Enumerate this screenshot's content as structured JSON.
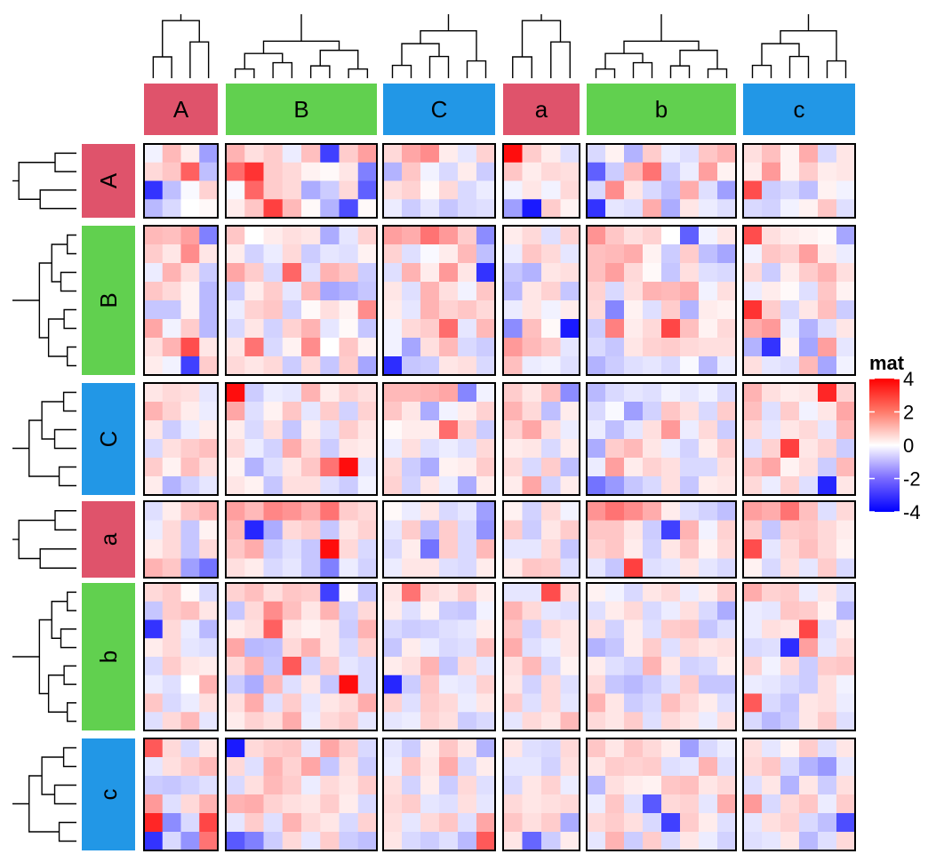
{
  "chart_data": {
    "type": "heatmap",
    "legend": {
      "title": "mat",
      "ticks": [
        "4",
        "2",
        "0",
        "-2",
        "-4"
      ],
      "range": [
        -4,
        4
      ],
      "colors": {
        "low": "#0000ff",
        "mid": "#ffffff",
        "high": "#ff0000"
      }
    },
    "column_groups": [
      {
        "label": "A",
        "color": "#df536b",
        "n": 4
      },
      {
        "label": "B",
        "color": "#61d04f",
        "n": 8
      },
      {
        "label": "C",
        "color": "#2297e6",
        "n": 6
      },
      {
        "label": "a",
        "color": "#df536b",
        "n": 4
      },
      {
        "label": "b",
        "color": "#61d04f",
        "n": 8
      },
      {
        "label": "c",
        "color": "#2297e6",
        "n": 6
      }
    ],
    "row_groups": [
      {
        "label": "A",
        "color": "#df536b",
        "n": 4
      },
      {
        "label": "B",
        "color": "#61d04f",
        "n": 8
      },
      {
        "label": "C",
        "color": "#2297e6",
        "n": 6
      },
      {
        "label": "a",
        "color": "#df536b",
        "n": 4
      },
      {
        "label": "b",
        "color": "#61d04f",
        "n": 8
      },
      {
        "label": "c",
        "color": "#2297e6",
        "n": 6
      }
    ],
    "values": [
      [
        -0.2,
        1.1,
        0.3,
        -1.5,
        1.2,
        0.5,
        0.8,
        -0.3,
        1.0,
        -3.0,
        0.8,
        1.5,
        0.6,
        1.4,
        1.8,
        0.3,
        -0.4,
        0.7,
        3.8,
        0.8,
        0.3,
        -0.5,
        -0.6,
        0.2,
        -1.2,
        0.8,
        -0.3,
        -0.5,
        0.9,
        1.2,
        0.5,
        1.0,
        0.2,
        1.3,
        -0.6,
        0.4
      ],
      [
        0.6,
        0.9,
        2.5,
        -1.0,
        2.3,
        3.2,
        0.8,
        0.6,
        0.2,
        0.1,
        0.4,
        -2.0,
        -1.2,
        0.9,
        -0.2,
        -0.6,
        0.3,
        -0.8,
        0.9,
        0.3,
        0.6,
        0.5,
        -2.5,
        -0.8,
        1.1,
        2.2,
        -0.8,
        -0.3,
        1.5,
        0.2,
        0.3,
        1.6,
        0.2,
        0.8,
        0.3,
        0.4
      ],
      [
        -3.2,
        -1.0,
        -0.1,
        0.7,
        -0.1,
        2.4,
        0.8,
        0.6,
        -1.3,
        -0.8,
        0.6,
        -2.5,
        0.5,
        0.7,
        0.1,
        0.6,
        -0.6,
        -0.3,
        -0.2,
        0.4,
        -0.2,
        0.6,
        -0.6,
        1.8,
        0.4,
        -0.6,
        -1.0,
        1.3,
        -0.5,
        -1.5,
        2.8,
        -0.8,
        -0.6,
        -1.0,
        0.2,
        -0.2
      ],
      [
        -1.1,
        -0.6,
        0.0,
        0.1,
        0.3,
        0.9,
        3.0,
        1.1,
        0.1,
        -1.2,
        -2.8,
        0.1,
        -0.3,
        -0.8,
        -0.4,
        -0.9,
        -0.6,
        -0.5,
        -1.5,
        -3.6,
        0.8,
        0.2,
        -3.2,
        -0.4,
        -0.5,
        1.3,
        -1.3,
        0.4,
        -0.3,
        -0.5,
        -0.6,
        -0.7,
        -0.2,
        0.2,
        0.9,
        -0.5
      ],
      [
        1.1,
        1.0,
        1.5,
        -2.0,
        0.9,
        0.0,
        0.3,
        0.5,
        0.4,
        -1.3,
        -0.4,
        0.7,
        1.5,
        1.3,
        2.2,
        1.6,
        0.8,
        -1.8,
        0.3,
        0.6,
        -0.5,
        0.7,
        1.7,
        0.9,
        0.5,
        0.7,
        0.0,
        -2.5,
        -0.2,
        0.4,
        2.8,
        0.5,
        0.3,
        0.2,
        0.1,
        -1.4
      ],
      [
        0.8,
        0.4,
        1.8,
        0.4,
        0.3,
        -0.7,
        -0.3,
        0.6,
        -0.8,
        -0.4,
        -0.5,
        0.2,
        0.7,
        -0.5,
        -0.1,
        0.3,
        1.1,
        -1.0,
        -0.3,
        0.9,
        0.6,
        -0.4,
        1.0,
        1.1,
        1.3,
        0.2,
        -0.8,
        0.8,
        -1.0,
        -1.4,
        -0.2,
        0.9,
        0.7,
        1.5,
        0.3,
        -0.3
      ],
      [
        -0.3,
        1.2,
        0.5,
        -0.8,
        1.4,
        0.8,
        -0.6,
        2.4,
        -0.5,
        1.2,
        0.9,
        -0.8,
        -0.5,
        1.2,
        0.3,
        1.6,
        0.4,
        -3.2,
        -0.9,
        -1.2,
        0.4,
        0.5,
        1.0,
        1.5,
        0.6,
        0.1,
        -0.9,
        0.5,
        -0.5,
        -0.6,
        0.6,
        -0.8,
        0.3,
        0.8,
        1.2,
        0.5
      ],
      [
        0.9,
        0.6,
        0.2,
        -1.1,
        -0.8,
        0.3,
        0.8,
        -0.4,
        1.1,
        -1.4,
        -1.2,
        -0.9,
        0.4,
        -0.5,
        1.2,
        0.5,
        -0.2,
        0.9,
        -1.1,
        0.4,
        0.7,
        -0.9,
        0.7,
        -0.6,
        0.5,
        1.2,
        1.1,
        1.3,
        -0.2,
        0.5,
        -0.3,
        0.3,
        0.1,
        -0.5,
        0.9,
        0.2
      ],
      [
        -0.9,
        -0.9,
        0.2,
        -1.1,
        -0.3,
        0.7,
        0.9,
        -0.7,
        0.1,
        0.5,
        0.2,
        1.8,
        0.3,
        -0.4,
        1.2,
        0.7,
        0.9,
        0.6,
        -0.3,
        0.4,
        -0.2,
        0.3,
        0.6,
        -1.9,
        0.2,
        -0.5,
        0.8,
        -1.2,
        0.3,
        0.2,
        3.2,
        0.8,
        -0.6,
        0.4,
        1.0,
        -0.8
      ],
      [
        1.4,
        -0.2,
        0.8,
        -1.1,
        -0.6,
        0.4,
        -0.7,
        0.7,
        1.2,
        -0.4,
        0.1,
        -0.9,
        -0.2,
        0.6,
        0.8,
        2.3,
        -0.4,
        1.1,
        -1.8,
        1.0,
        0.1,
        -3.6,
        -0.8,
        2.0,
        0.3,
        0.6,
        2.9,
        1.0,
        0.2,
        0.6,
        1.3,
        1.6,
        -0.3,
        -1.2,
        -0.5,
        0.4
      ],
      [
        0.5,
        1.2,
        2.8,
        0.4,
        0.4,
        2.2,
        -0.6,
        0.2,
        1.8,
        0.0,
        0.9,
        0.2,
        -0.2,
        -1.4,
        0.5,
        1.1,
        -0.6,
        -0.8,
        1.6,
        1.1,
        0.8,
        -0.4,
        -0.6,
        -0.9,
        0.4,
        0.7,
        0.8,
        0.6,
        0.5,
        0.5,
        -1.2,
        -3.2,
        0.2,
        -1.4,
        1.5,
        -0.4
      ],
      [
        0.3,
        -0.2,
        -3.0,
        0.8,
        0.6,
        0.4,
        0.6,
        -0.8,
        0.6,
        -0.9,
        0.8,
        -1.4,
        -3.3,
        -0.9,
        -0.8,
        0.4,
        0.5,
        -0.6,
        1.0,
        -0.3,
        -0.2,
        -0.5,
        -1.2,
        -0.8,
        -0.5,
        -0.4,
        -0.6,
        -0.1,
        -1.1,
        -0.3,
        0.5,
        -0.4,
        -0.5,
        1.1,
        -1.4,
        -0.2
      ],
      [
        0.4,
        0.6,
        0.5,
        -0.4,
        3.8,
        -0.8,
        -0.3,
        -0.4,
        1.2,
        0.3,
        0.7,
        0.5,
        1.1,
        1.1,
        1.2,
        1.4,
        -1.9,
        -0.2,
        0.8,
        0.4,
        1.0,
        -1.8,
        -1.1,
        -0.6,
        -0.4,
        -0.5,
        -0.2,
        -0.4,
        -0.2,
        -0.6,
        1.2,
        0.5,
        0.3,
        0.4,
        3.4,
        0.7
      ],
      [
        1.2,
        0.7,
        0.3,
        -0.3,
        1.4,
        -0.5,
        0.2,
        0.9,
        -0.4,
        0.8,
        -0.7,
        0.7,
        0.9,
        0.4,
        -1.3,
        -0.2,
        0.3,
        0.7,
        1.2,
        0.6,
        -1.0,
        0.3,
        -0.6,
        -0.1,
        -1.5,
        -0.7,
        0.9,
        0.5,
        -0.6,
        0.8,
        1.0,
        -0.5,
        0.8,
        -0.2,
        0.4,
        1.4
      ],
      [
        0.4,
        -0.8,
        -0.3,
        0.3,
        0.3,
        -0.6,
        0.5,
        -0.9,
        0.3,
        -0.5,
        0.8,
        0.4,
        0.1,
        0.3,
        0.3,
        2.3,
        0.7,
        -0.8,
        0.7,
        1.4,
        0.5,
        -0.3,
        -0.3,
        -1.0,
        -0.4,
        0.5,
        1.6,
        -0.3,
        0.6,
        -0.8,
        0.6,
        -0.4,
        0.4,
        0.6,
        -0.4,
        1.1
      ],
      [
        -0.6,
        0.5,
        0.8,
        1.0,
        0.6,
        -0.3,
        -0.7,
        1.3,
        0.6,
        -0.8,
        0.4,
        0.3,
        -0.3,
        0.5,
        -0.5,
        -0.3,
        -0.5,
        0.6,
        0.3,
        0.4,
        -0.6,
        0.3,
        -1.3,
        0.8,
        1.1,
        0.4,
        -0.3,
        -0.7,
        0.3,
        0.8,
        -0.5,
        0.7,
        3.0,
        0.4,
        0.7,
        -0.8
      ],
      [
        0.8,
        0.2,
        1.0,
        0.5,
        0.2,
        -1.2,
        -0.5,
        0.4,
        0.9,
        2.2,
        3.8,
        -0.4,
        0.6,
        -0.8,
        -1.3,
        0.2,
        0.3,
        0.8,
        0.6,
        -0.6,
        0.8,
        -1.0,
        -0.3,
        1.5,
        0.3,
        0.7,
        0.5,
        -0.6,
        -0.6,
        0.5,
        1.0,
        1.4,
        0.2,
        0.5,
        -0.8,
        1.1
      ],
      [
        0.3,
        -1.2,
        -0.7,
        -0.4,
        0.4,
        0.2,
        -0.9,
        0.5,
        0.5,
        -0.5,
        -0.8,
        -0.2,
        0.7,
        -0.7,
        0.4,
        -0.3,
        -1.3,
        0.3,
        0.3,
        1.4,
        -0.7,
        0.3,
        -2.2,
        -1.6,
        -0.9,
        -0.6,
        0.5,
        -0.9,
        0.3,
        0.4,
        0.6,
        -0.3,
        0.7,
        -0.5,
        -3.4,
        0.4
      ],
      [
        -0.5,
        0.3,
        0.9,
        1.2,
        1.5,
        1.1,
        1.9,
        1.7,
        1.3,
        2.2,
        0.8,
        0.6,
        0.1,
        -0.3,
        0.4,
        -0.6,
        -0.4,
        -1.5,
        0.2,
        -0.7,
        0.6,
        -0.2,
        1.7,
        2.2,
        1.8,
        1.3,
        0.3,
        -0.5,
        -0.7,
        -1.0,
        1.5,
        1.3,
        2.2,
        1.0,
        -0.5,
        0.6
      ],
      [
        -0.3,
        0.6,
        -0.9,
        0.2,
        1.1,
        -3.4,
        -1.3,
        0.6,
        0.8,
        -0.9,
        0.4,
        0.7,
        -0.4,
        0.8,
        -1.1,
        0.8,
        -0.6,
        -1.7,
        0.8,
        -0.8,
        0.4,
        0.8,
        0.9,
        0.9,
        0.4,
        -0.8,
        -3.0,
        1.2,
        -0.2,
        0.7,
        0.8,
        -0.9,
        0.8,
        0.9,
        0.6,
        0.3
      ],
      [
        0.3,
        0.6,
        -0.9,
        0.6,
        0.9,
        1.3,
        -0.8,
        -0.5,
        -0.9,
        3.8,
        0.6,
        -0.6,
        -0.6,
        0.3,
        -2.2,
        0.8,
        -0.6,
        1.1,
        -0.4,
        -0.4,
        0.6,
        -0.9,
        0.7,
        0.9,
        0.3,
        -0.7,
        0.4,
        0.9,
        0.2,
        0.6,
        2.8,
        -0.4,
        0.6,
        1.0,
        0.6,
        0.2
      ],
      [
        1.2,
        0.9,
        -1.5,
        -2.2,
        0.5,
        0.3,
        -0.6,
        -0.4,
        -0.9,
        -2.0,
        -0.3,
        -0.7,
        -0.3,
        0.4,
        0.4,
        -0.5,
        -0.6,
        0.3,
        0.3,
        0.9,
        0.8,
        -0.5,
        -0.4,
        -0.9,
        3.0,
        -0.5,
        -0.4,
        0.4,
        -0.4,
        -0.6,
        0.2,
        -0.6,
        0.5,
        -0.4,
        0.8,
        -0.6
      ],
      [
        0.6,
        0.8,
        0.1,
        -0.6,
        0.7,
        1.0,
        0.5,
        0.9,
        0.8,
        -3.0,
        0.1,
        -0.9,
        0.4,
        2.2,
        0.6,
        0.4,
        0.8,
        0.3,
        -0.4,
        -0.4,
        2.8,
        0.5,
        0.2,
        -0.2,
        -0.6,
        0.4,
        0.6,
        -0.3,
        0.3,
        0.8,
        1.3,
        0.7,
        0.8,
        -0.3,
        0.4,
        -0.5
      ],
      [
        -0.9,
        0.8,
        1.0,
        0.4,
        -0.9,
        0.6,
        1.8,
        1.0,
        0.4,
        1.2,
        -0.7,
        0.6,
        0.3,
        -0.5,
        0.2,
        -0.8,
        -0.9,
        -0.2,
        1.2,
        0.6,
        -0.4,
        -0.5,
        -0.5,
        0.3,
        0.6,
        -0.6,
        -0.3,
        0.5,
        -0.6,
        -1.3,
        -0.3,
        -0.4,
        0.9,
        0.8,
        0.2,
        -1.1
      ],
      [
        -3.2,
        0.6,
        -0.3,
        -1.1,
        0.3,
        0.5,
        2.5,
        0.4,
        0.2,
        0.4,
        -0.8,
        1.2,
        -0.6,
        -0.8,
        -0.7,
        -0.5,
        -0.4,
        0.3,
        0.9,
        -0.7,
        0.6,
        0.4,
        0.5,
        -0.7,
        0.3,
        -0.5,
        0.8,
        0.9,
        -0.9,
        -0.5,
        -0.3,
        0.5,
        0.4,
        2.9,
        -0.5,
        0.3
      ],
      [
        0.3,
        0.6,
        -0.4,
        -0.5,
        1.4,
        -1.1,
        -1.0,
        0.6,
        1.2,
        0.4,
        -0.6,
        0.7,
        -0.9,
        0.3,
        -0.3,
        -0.6,
        -0.5,
        1.0,
        1.3,
        -0.5,
        -0.3,
        0.4,
        -1.2,
        -0.9,
        0.3,
        0.8,
        -0.5,
        0.6,
        0.4,
        0.5,
        -0.6,
        -0.5,
        -3.3,
        1.5,
        -0.4,
        0.6
      ],
      [
        -0.6,
        0.8,
        0.4,
        0.3,
        0.6,
        1.2,
        -0.9,
        2.6,
        -0.7,
        0.8,
        -0.4,
        -0.6,
        0.3,
        0.5,
        1.2,
        -0.9,
        0.6,
        -0.4,
        0.5,
        1.1,
        -0.6,
        0.2,
        0.3,
        -0.5,
        -0.7,
        1.2,
        0.4,
        -0.7,
        -0.6,
        0.3,
        0.7,
        -0.2,
        0.6,
        -0.8,
        0.8,
        0.9
      ],
      [
        -0.3,
        -0.5,
        0.0,
        1.2,
        -0.8,
        -1.3,
        1.1,
        -0.5,
        0.4,
        -0.9,
        3.8,
        -0.6,
        -3.4,
        -0.8,
        0.9,
        -0.3,
        -0.4,
        0.7,
        0.4,
        -0.7,
        0.6,
        -0.5,
        0.6,
        -0.9,
        -1.1,
        -0.8,
        -0.5,
        0.8,
        -0.9,
        -0.9,
        -0.3,
        -0.4,
        -0.6,
        -0.8,
        0.5,
        -0.2
      ],
      [
        0.9,
        -0.6,
        -0.3,
        0.5,
        0.5,
        1.3,
        -0.5,
        0.8,
        -0.4,
        0.4,
        0.6,
        1.3,
        0.7,
        -0.5,
        0.8,
        0.6,
        -0.3,
        0.4,
        0.8,
        -0.5,
        0.6,
        -0.4,
        1.2,
        0.4,
        -0.8,
        -0.6,
        1.0,
        0.6,
        0.3,
        -0.5,
        2.6,
        -0.6,
        -0.9,
        0.4,
        0.5,
        -0.3
      ],
      [
        -0.5,
        0.6,
        1.1,
        -0.4,
        0.3,
        0.7,
        0.5,
        1.3,
        -0.3,
        0.6,
        0.8,
        -0.4,
        -0.4,
        -0.3,
        0.7,
        0.5,
        -0.8,
        -0.6,
        -0.4,
        0.6,
        0.4,
        1.1,
        0.6,
        0.4,
        0.8,
        -0.5,
        0.6,
        0.4,
        -0.3,
        0.5,
        -0.6,
        -1.1,
        -0.8,
        0.4,
        0.8,
        -0.5
      ],
      [
        2.6,
        0.6,
        -0.6,
        0.4,
        -3.6,
        0.6,
        0.8,
        0.9,
        -0.4,
        1.4,
        0.8,
        -0.6,
        -0.4,
        -0.8,
        0.3,
        0.9,
        0.4,
        -1.2,
        0.4,
        -0.5,
        -0.6,
        0.6,
        0.9,
        0.4,
        0.9,
        0.6,
        0.3,
        -1.5,
        -0.6,
        -0.3,
        0.5,
        -0.4,
        0.2,
        0.8,
        -0.5,
        0.4
      ],
      [
        -0.4,
        0.5,
        0.8,
        1.1,
        0.6,
        -0.5,
        1.2,
        0.7,
        1.4,
        -0.9,
        0.5,
        -0.8,
        -0.3,
        0.9,
        0.4,
        1.3,
        -0.6,
        0.3,
        -0.4,
        -0.4,
        -0.7,
        0.5,
        0.4,
        0.8,
        0.7,
        0.8,
        -0.5,
        -0.4,
        1.2,
        -0.5,
        0.6,
        0.9,
        -0.6,
        -1.2,
        -1.6,
        -0.4
      ],
      [
        -0.8,
        -0.9,
        -0.7,
        -0.5,
        -0.6,
        0.5,
        1.1,
        0.8,
        -0.3,
        0.6,
        0.4,
        0.8,
        0.5,
        -0.7,
        0.3,
        -0.8,
        0.6,
        -0.5,
        -0.6,
        0.4,
        0.7,
        -0.3,
        -1.1,
        0.5,
        0.3,
        0.2,
        0.9,
        1.0,
        0.4,
        0.6,
        -0.5,
        0.4,
        -1.2,
        0.4,
        -0.8,
        0.5
      ],
      [
        1.6,
        -0.5,
        0.6,
        1.2,
        1.2,
        1.3,
        0.7,
        0.5,
        0.4,
        0.8,
        0.3,
        -0.6,
        0.6,
        0.8,
        -0.4,
        -0.5,
        0.5,
        -0.4,
        0.6,
        0.4,
        0.5,
        0.6,
        -0.3,
        0.9,
        -0.5,
        -2.6,
        0.6,
        0.7,
        -0.4,
        1.3,
        1.6,
        -0.6,
        0.6,
        0.9,
        -0.3,
        0.8
      ],
      [
        3.4,
        -1.8,
        -0.6,
        2.9,
        -0.4,
        0.8,
        -0.5,
        1.2,
        0.6,
        0.4,
        -0.6,
        0.7,
        0.5,
        -0.4,
        0.6,
        0.9,
        -0.5,
        1.4,
        0.9,
        0.5,
        0.8,
        -1.3,
        0.6,
        0.8,
        0.5,
        -0.6,
        -3.0,
        0.8,
        0.3,
        -0.5,
        -0.4,
        0.5,
        0.7,
        -0.6,
        -1.0,
        -2.8
      ],
      [
        -3.2,
        -0.6,
        -1.7,
        2.2,
        -2.6,
        -2.0,
        -0.8,
        0.6,
        -0.4,
        0.8,
        -0.8,
        -1.0,
        0.4,
        -0.6,
        -0.8,
        -0.5,
        -1.1,
        2.6,
        0.4,
        -2.4,
        -0.8,
        0.3,
        -0.4,
        1.2,
        -0.8,
        0.8,
        -0.6,
        0.4,
        -0.3,
        -0.7,
        -0.5,
        -0.4,
        0.4,
        -1.1,
        -0.5,
        0.6
      ]
    ]
  }
}
